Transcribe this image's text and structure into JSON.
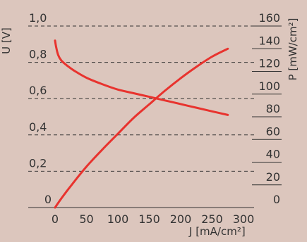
{
  "chart_data": {
    "type": "line",
    "title": "",
    "xlabel": "J [mA/cm²]",
    "ylabel": "U [V]",
    "y2label": "P [mW/cm²]",
    "xlim": [
      0,
      300
    ],
    "ylim": [
      0,
      1.0
    ],
    "y2lim": [
      0,
      160
    ],
    "x_ticks": [
      "0",
      "50",
      "100",
      "150",
      "200",
      "250",
      "300"
    ],
    "y_ticks": [
      "0",
      "0,2",
      "0,4",
      "0,6",
      "0,8",
      "1,0"
    ],
    "y2_ticks": [
      "0",
      "20",
      "40",
      "60",
      "80",
      "100",
      "120",
      "140",
      "160"
    ],
    "grid": "horizontal dashed lines at left-axis ticks",
    "series_color": "#e8332e",
    "series": [
      {
        "axis": "left",
        "x": [
          0,
          2,
          5,
          10,
          20,
          30,
          50,
          75,
          100,
          125,
          150,
          175,
          200,
          225,
          250,
          275
        ],
        "y": [
          0.92,
          0.88,
          0.84,
          0.81,
          0.78,
          0.755,
          0.715,
          0.68,
          0.65,
          0.63,
          0.61,
          0.59,
          0.57,
          0.55,
          0.53,
          0.51
        ]
      },
      {
        "axis": "right",
        "x": [
          0,
          10,
          25,
          50,
          75,
          100,
          125,
          150,
          175,
          200,
          225,
          250,
          275
        ],
        "y": [
          0,
          8,
          19,
          36,
          51,
          65,
          79,
          91,
          103,
          114,
          124,
          133,
          140
        ]
      }
    ]
  }
}
